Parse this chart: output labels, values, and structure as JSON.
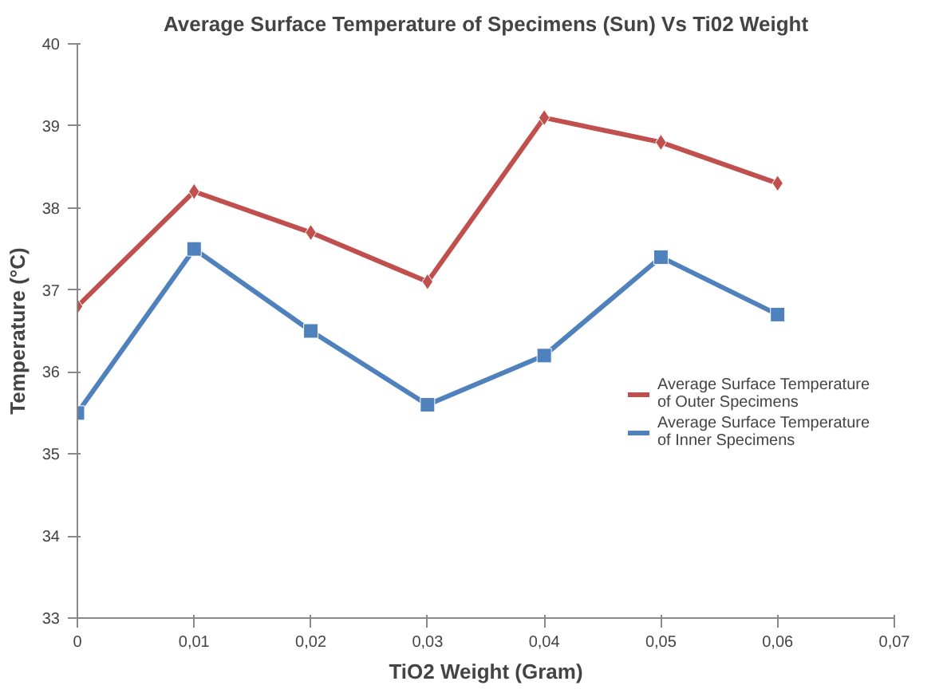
{
  "chart_data": {
    "type": "line",
    "title": "Average Surface Temperature of Specimens (Sun) Vs Ti02 Weight",
    "xlabel": "TiO2 Weight (Gram)",
    "ylabel": "Temperature (°C)",
    "x": [
      0,
      0.01,
      0.02,
      0.03,
      0.04,
      0.05,
      0.06
    ],
    "series": [
      {
        "name": "Average Surface Temperature of Outer Specimens",
        "color": "#c0504d",
        "marker": "diamond",
        "values": [
          36.8,
          38.2,
          37.7,
          37.1,
          39.1,
          38.8,
          38.3
        ]
      },
      {
        "name": "Average Surface Temperature of Inner Specimens",
        "color": "#4f81bd",
        "marker": "square",
        "values": [
          35.5,
          37.5,
          36.5,
          35.6,
          36.2,
          37.4,
          36.7
        ]
      }
    ],
    "xlim": [
      0,
      0.07
    ],
    "ylim": [
      33,
      40
    ],
    "xticks": [
      0,
      {
        "value": 0.01,
        "label": "0,01"
      },
      {
        "value": 0.02,
        "label": "0,02"
      },
      {
        "value": 0.03,
        "label": "0,03"
      },
      {
        "value": 0.04,
        "label": "0,04"
      },
      {
        "value": 0.05,
        "label": "0,05"
      },
      {
        "value": 0.06,
        "label": "0,06"
      },
      {
        "value": 0.07,
        "label": "0,07"
      }
    ],
    "yticks": [
      33,
      34,
      35,
      36,
      37,
      38,
      39,
      40
    ],
    "grid": false,
    "legend": "right"
  }
}
